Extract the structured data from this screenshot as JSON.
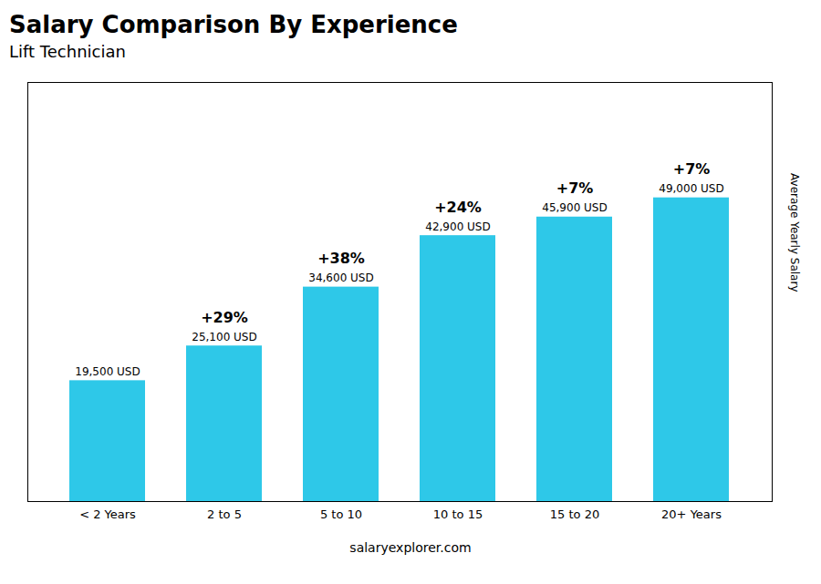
{
  "chart_data": {
    "type": "bar",
    "title": "Salary Comparison By Experience",
    "subtitle": "Lift Technician",
    "ylabel": "Average Yearly Salary",
    "caption": "salaryexplorer.com",
    "categories": [
      "< 2 Years",
      "2 to 5",
      "5 to 10",
      "10 to 15",
      "15 to 20",
      "20+ Years"
    ],
    "values": [
      19500,
      25100,
      34600,
      42900,
      45900,
      49000
    ],
    "value_labels": [
      "19,500 USD",
      "25,100 USD",
      "34,600 USD",
      "42,900 USD",
      "45,900 USD",
      "49,000 USD"
    ],
    "data_labels": true,
    "annotations": [
      "+29%",
      "+38%",
      "+24%",
      "+7%",
      "+7%"
    ],
    "color": "#2ec8e8",
    "ylim": [
      0,
      67620
    ],
    "tick_labels": "x",
    "grid": false
  }
}
